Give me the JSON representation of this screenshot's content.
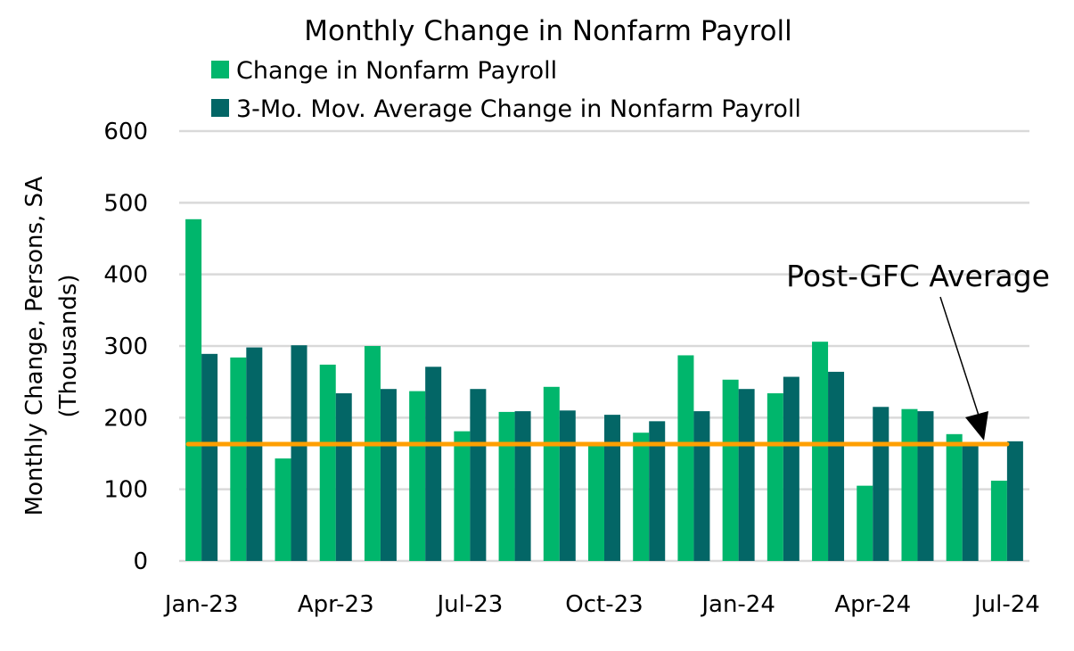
{
  "chart_data": {
    "type": "bar",
    "title": "Monthly Change in Nonfarm Payroll",
    "ylabel_lines": [
      "Monthly Change, Persons, SA",
      "(Thousands)"
    ],
    "xlabel": "",
    "ylim": [
      0,
      600
    ],
    "yticks": [
      0,
      100,
      200,
      300,
      400,
      500,
      600
    ],
    "grid": true,
    "legend": "top",
    "categories": [
      "Jan-23",
      "Feb-23",
      "Mar-23",
      "Apr-23",
      "May-23",
      "Jun-23",
      "Jul-23",
      "Aug-23",
      "Sep-23",
      "Oct-23",
      "Nov-23",
      "Dec-23",
      "Jan-24",
      "Feb-24",
      "Mar-24",
      "Apr-24",
      "May-24",
      "Jun-24",
      "Jul-24"
    ],
    "xtick_labels": [
      "Jan-23",
      "Apr-23",
      "Jul-23",
      "Oct-23",
      "Jan-24",
      "Apr-24",
      "Jul-24"
    ],
    "series": [
      {
        "name": "Change in Nonfarm Payroll",
        "color": "#00b66c",
        "values": [
          477,
          284,
          143,
          274,
          300,
          237,
          181,
          208,
          243,
          163,
          179,
          287,
          253,
          234,
          306,
          105,
          212,
          177,
          112
        ]
      },
      {
        "name": "3-Mo. Mov. Average Change in Nonfarm Payroll",
        "color": "#036666",
        "values": [
          289,
          298,
          301,
          234,
          240,
          271,
          240,
          209,
          210,
          204,
          195,
          209,
          240,
          257,
          264,
          215,
          209,
          163,
          167
        ]
      }
    ],
    "reference_line": {
      "label": "Post-GFC Average",
      "value": 163,
      "color": "#ff9f00"
    }
  }
}
